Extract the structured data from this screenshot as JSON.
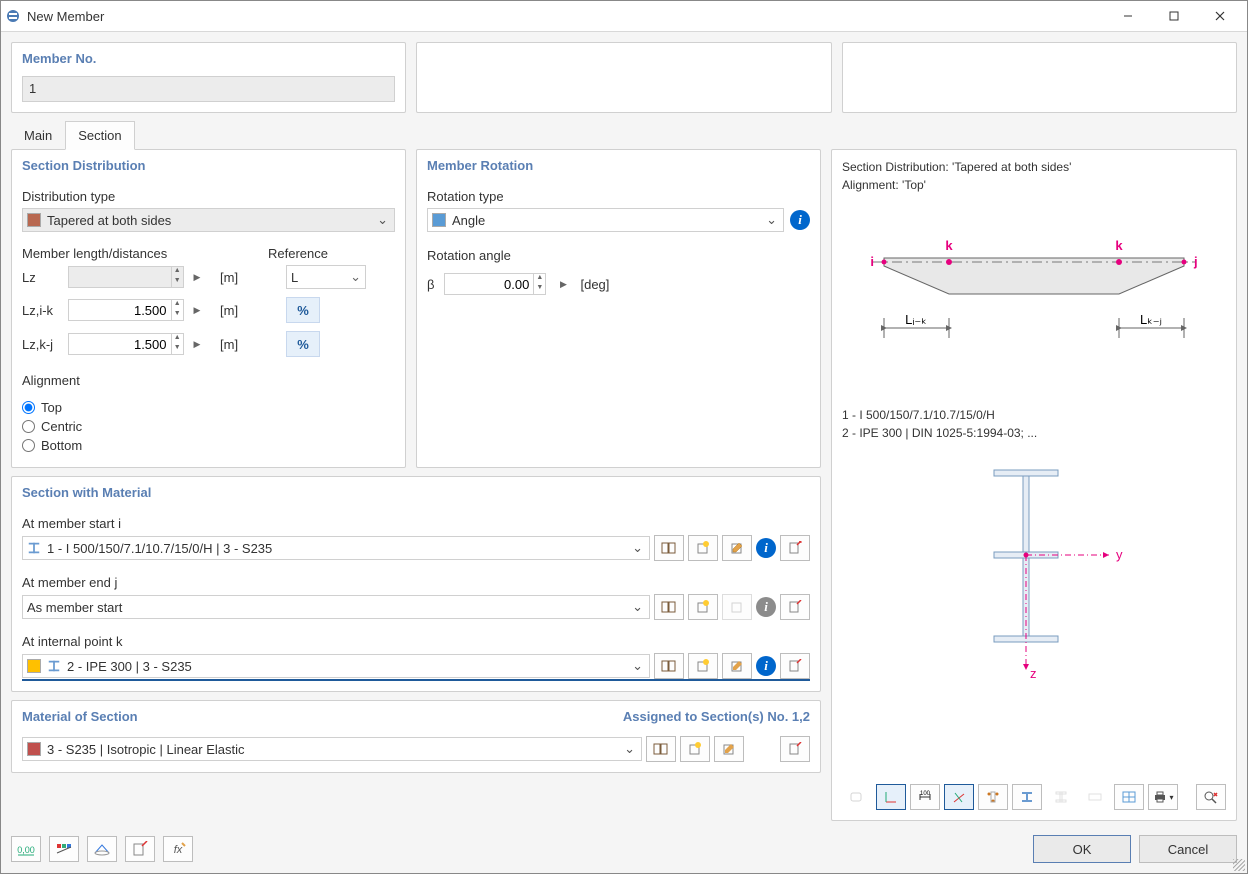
{
  "window": {
    "title": "New Member"
  },
  "header": {
    "member_no_label": "Member No.",
    "member_no_value": "1"
  },
  "tabs": {
    "items": [
      {
        "label": "Main"
      },
      {
        "label": "Section"
      }
    ],
    "active_index": 1
  },
  "section_distribution": {
    "heading": "Section Distribution",
    "distribution_type_label": "Distribution type",
    "distribution_type_value": "Tapered at both sides",
    "distribution_type_color": "#b86850",
    "member_lengths_label": "Member length/distances",
    "reference_label": "Reference",
    "rows": [
      {
        "name": "Lz",
        "value": "",
        "unit": "[m]",
        "readonly": true,
        "ref_kind": "select",
        "ref_value": "L"
      },
      {
        "name": "Lz,i-k",
        "value": "1.500",
        "unit": "[m]",
        "readonly": false,
        "ref_kind": "pct"
      },
      {
        "name": "Lz,k-j",
        "value": "1.500",
        "unit": "[m]",
        "readonly": false,
        "ref_kind": "pct"
      }
    ],
    "alignment_label": "Alignment",
    "alignment_options": [
      "Top",
      "Centric",
      "Bottom"
    ],
    "alignment_selected": 0
  },
  "member_rotation": {
    "heading": "Member Rotation",
    "rotation_type_label": "Rotation type",
    "rotation_type_value": "Angle",
    "rotation_type_color": "#5a9bd5",
    "rotation_angle_label": "Rotation angle",
    "rotation_angle_symbol": "β",
    "rotation_angle_value": "0.00",
    "rotation_angle_unit": "[deg]"
  },
  "section_material": {
    "heading": "Section with Material",
    "start_label": "At member start i",
    "start_value": "1 - I 500/150/7.1/10.7/15/0/H | 3 - S235",
    "end_label": "At member end j",
    "end_value": "As member start",
    "internal_label": "At internal point k",
    "internal_value": "2 - IPE 300 | 3 - S235"
  },
  "material_of_section": {
    "heading": "Material of Section",
    "assigned_label": "Assigned to Section(s) No. 1,2",
    "value": "3 - S235 | Isotropic | Linear Elastic",
    "color": "#c0504d"
  },
  "preview": {
    "distribution_line": "Section Distribution: 'Tapered at both sides'",
    "alignment_line": "Alignment: 'Top'",
    "section_list": [
      "1 - I 500/150/7.1/10.7/15/0/H",
      "2 - IPE 300 | DIN 1025-5:1994-03; ..."
    ],
    "diagram": {
      "labels_k": "k",
      "label_i": "i",
      "label_j": "j",
      "dim_ik": "Lᵢ₋ₖ",
      "dim_kj": "Lₖ₋ⱼ",
      "fill": "#e8e8e8",
      "stroke": "#666666",
      "accent": "#e6007e",
      "axis_y": "y",
      "axis_z": "z",
      "ibeam_color": "#7a9cbf"
    }
  },
  "footer": {
    "ok": "OK",
    "cancel": "Cancel"
  },
  "colors": {
    "heading": "#5a7fb3",
    "panel_border": "#d0d0d0",
    "info_blue": "#0066cc",
    "blue_light": "#e6f0fa"
  }
}
